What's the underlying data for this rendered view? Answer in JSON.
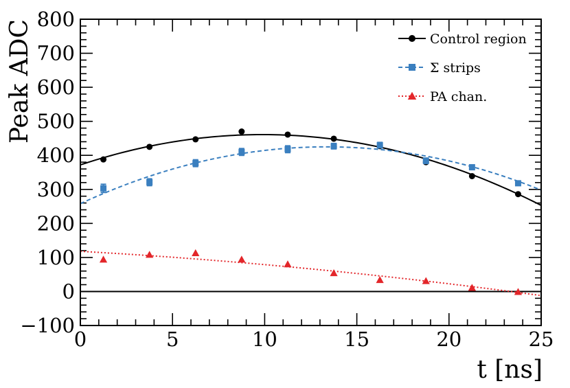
{
  "chart_data": {
    "type": "scatter",
    "title": "",
    "xlabel": "t [ns]",
    "ylabel": "Peak ADC",
    "xlim": [
      0,
      25
    ],
    "ylim": [
      -100,
      800
    ],
    "x_ticks": [
      0,
      5,
      10,
      15,
      20,
      25
    ],
    "x_tick_labels": [
      "0",
      "5",
      "10",
      "15",
      "20",
      "25"
    ],
    "y_ticks": [
      -100,
      0,
      100,
      200,
      300,
      400,
      500,
      600,
      700,
      800
    ],
    "y_tick_labels": [
      "−100",
      "0",
      "100",
      "200",
      "300",
      "400",
      "500",
      "600",
      "700",
      "800"
    ],
    "zero_line": 0,
    "legend_position": "top-right",
    "series": [
      {
        "name": "Control region",
        "color": "#000000",
        "marker": "circle",
        "line_style": "solid",
        "x": [
          1.25,
          3.75,
          6.25,
          8.75,
          11.25,
          13.75,
          16.25,
          18.75,
          21.25,
          23.75
        ],
        "y": [
          388,
          425,
          447,
          470,
          461,
          449,
          427,
          380,
          339,
          286
        ],
        "yerr": [
          0,
          0,
          0,
          0,
          0,
          0,
          0,
          0,
          0,
          0
        ],
        "fit": {
          "type": "quadratic",
          "x": [
            0,
            10,
            25
          ],
          "y": [
            372,
            461,
            253
          ]
        }
      },
      {
        "name": "Σ strips",
        "color": "#3a7fbf",
        "marker": "square",
        "line_style": "dashed",
        "x": [
          1.25,
          3.75,
          6.25,
          8.75,
          11.25,
          13.75,
          16.25,
          18.75,
          21.25,
          23.75
        ],
        "y": [
          303,
          321,
          377,
          410,
          418,
          427,
          430,
          384,
          365,
          318
        ],
        "yerr": [
          12,
          10,
          10,
          10,
          10,
          8,
          8,
          8,
          7,
          6
        ],
        "fit": {
          "type": "quadratic",
          "x": [
            0,
            13.5,
            25
          ],
          "y": [
            258,
            425,
            298
          ]
        }
      },
      {
        "name": "PA chan.",
        "color": "#e3262a",
        "marker": "triangle",
        "line_style": "dotted",
        "x": [
          1.25,
          3.75,
          6.25,
          8.75,
          11.25,
          13.75,
          16.25,
          18.75,
          21.25,
          23.75
        ],
        "y": [
          94,
          108,
          113,
          94,
          80,
          54,
          34,
          31,
          11,
          -1
        ],
        "yerr": [
          0,
          0,
          0,
          0,
          0,
          0,
          0,
          0,
          0,
          0
        ],
        "fit": {
          "type": "quadratic",
          "x": [
            0,
            12,
            25
          ],
          "y": [
            118,
            69,
            -12
          ]
        }
      }
    ]
  }
}
